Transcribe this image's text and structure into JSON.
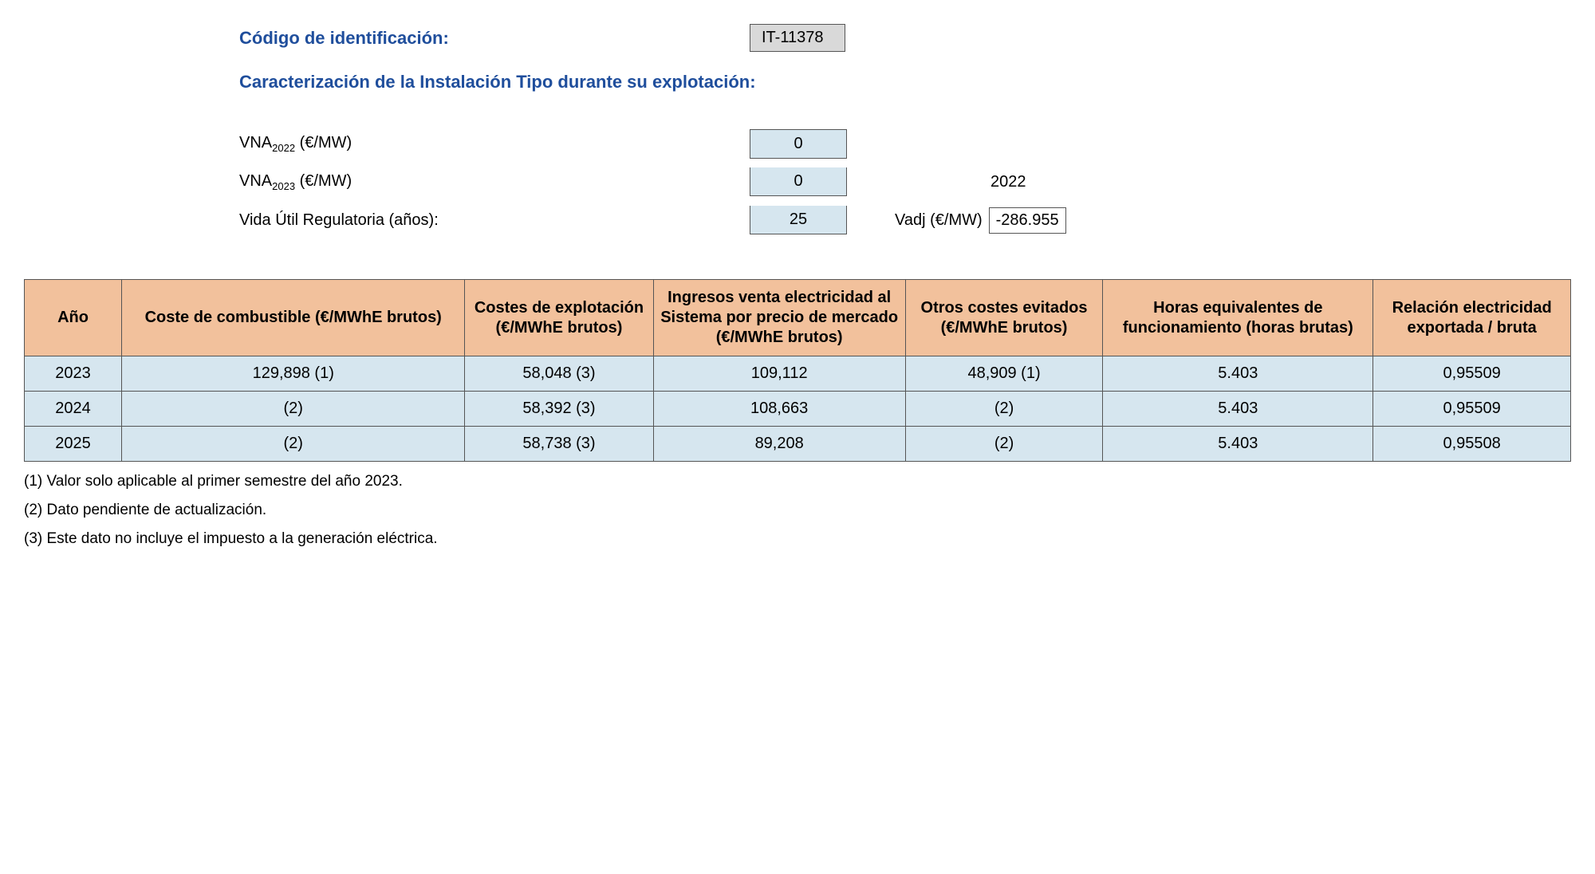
{
  "header": {
    "code_label": "Código de identificación:",
    "code_value": "IT-11378",
    "subtitle": "Caracterización de la Instalación Tipo durante su explotación:"
  },
  "params": {
    "vna2022_label_pre": "VNA",
    "vna2022_sub": "2022",
    "vna2022_label_post": " (€/MW)",
    "vna2022_value": "0",
    "vna2023_label_pre": "VNA",
    "vna2023_sub": "2023",
    "vna2023_label_post": " (€/MW)",
    "vna2023_value": "0",
    "side_year": "2022",
    "vida_label": "Vida Útil Regulatoria (años):",
    "vida_value": "25",
    "vadj_label": "Vadj (€/MW)",
    "vadj_value": "-286.955"
  },
  "table": {
    "columns": [
      "Año",
      "Coste de combustible (€/MWhE brutos)",
      "Costes de explotación (€/MWhE brutos)",
      "Ingresos venta electricidad al Sistema por precio de mercado (€/MWhE brutos)",
      "Otros costes evitados (€/MWhE brutos)",
      "Horas equivalentes de funcionamiento (horas brutas)",
      "Relación electricidad exportada / bruta"
    ],
    "rows": [
      [
        "2023",
        "129,898 (1)",
        "58,048 (3)",
        "109,112",
        "48,909 (1)",
        "5.403",
        "0,95509"
      ],
      [
        "2024",
        "(2)",
        "58,392 (3)",
        "108,663",
        "(2)",
        "5.403",
        "0,95509"
      ],
      [
        "2025",
        "(2)",
        "58,738 (3)",
        "89,208",
        "(2)",
        "5.403",
        "0,95508"
      ]
    ],
    "header_bg": "#f2c19c",
    "cell_bg": "#d6e6ef",
    "border_color": "#555555"
  },
  "footnotes": [
    "(1) Valor solo aplicable al primer semestre del año 2023.",
    "(2) Dato pendiente de actualización.",
    "(3) Este dato no incluye el impuesto a la generación eléctrica."
  ]
}
